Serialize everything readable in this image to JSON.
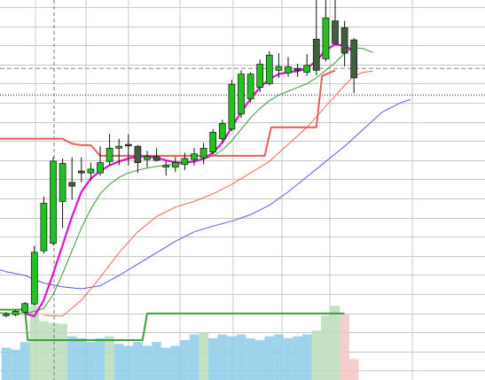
{
  "chart_data": {
    "type": "candlestick",
    "title": "",
    "xlabel": "",
    "ylabel": "",
    "grid": true,
    "legend": "none",
    "ylim": [
      0,
      100
    ],
    "axis_labels_visible": false,
    "colors": {
      "bull": "#22c122",
      "bear": "#3f5f3f",
      "ma_fast": "#e010d0",
      "ma_green": "#3a9a3a",
      "ma_red": "#f06a50",
      "ma_blue": "#5a5ae0",
      "stop_line": "#ee5a5a",
      "volume_step": "#3aa03a",
      "volume_fill": "#8ccbe8",
      "volume_green": "#b9ddb9",
      "volume_red": "#f2c4c4",
      "grid": "#c8c8c8",
      "reference_line": "#000000"
    },
    "candles": [
      {
        "o": 17.0,
        "h": 17.9,
        "l": 16.5,
        "c": 17.3
      },
      {
        "o": 17.2,
        "h": 18.5,
        "l": 16.8,
        "c": 18.1
      },
      {
        "o": 17.8,
        "h": 20.5,
        "l": 17.4,
        "c": 20.1
      },
      {
        "o": 20.0,
        "h": 35.3,
        "l": 19.6,
        "c": 33.6
      },
      {
        "o": 34.0,
        "h": 48.3,
        "l": 33.3,
        "c": 46.5
      },
      {
        "o": 36.0,
        "h": 58.6,
        "l": 35.5,
        "c": 57.6
      },
      {
        "o": 47.0,
        "h": 58.3,
        "l": 40.0,
        "c": 57.0
      },
      {
        "o": 52.0,
        "h": 58.6,
        "l": 47.5,
        "c": 51.0
      },
      {
        "o": 55.0,
        "h": 58.6,
        "l": 52.0,
        "c": 54.5
      },
      {
        "o": 54.5,
        "h": 57.2,
        "l": 52.5,
        "c": 55.5
      },
      {
        "o": 54.5,
        "h": 61.5,
        "l": 53.8,
        "c": 57.2
      },
      {
        "o": 57.5,
        "h": 64.8,
        "l": 56.5,
        "c": 61.0
      },
      {
        "o": 61.0,
        "h": 63.5,
        "l": 56.5,
        "c": 61.5
      },
      {
        "o": 62.0,
        "h": 64.7,
        "l": 56.5,
        "c": 61.6
      },
      {
        "o": 61.5,
        "h": 61.8,
        "l": 54.5,
        "c": 57.2
      },
      {
        "o": 58.0,
        "h": 60.3,
        "l": 56.0,
        "c": 58.8
      },
      {
        "o": 58.8,
        "h": 61.0,
        "l": 57.5,
        "c": 57.8
      },
      {
        "o": 56.0,
        "h": 57.7,
        "l": 53.8,
        "c": 56.5
      },
      {
        "o": 56.0,
        "h": 58.7,
        "l": 54.7,
        "c": 57.2
      },
      {
        "o": 56.7,
        "h": 59.8,
        "l": 55.2,
        "c": 58.3
      },
      {
        "o": 58.0,
        "h": 61.0,
        "l": 56.4,
        "c": 59.5
      },
      {
        "o": 58.5,
        "h": 62.4,
        "l": 56.8,
        "c": 61.0
      },
      {
        "o": 60.0,
        "h": 66.0,
        "l": 59.3,
        "c": 65.2
      },
      {
        "o": 63.5,
        "h": 68.5,
        "l": 62.5,
        "c": 67.5
      },
      {
        "o": 66.0,
        "h": 79.0,
        "l": 65.5,
        "c": 77.8
      },
      {
        "o": 70.0,
        "h": 81.5,
        "l": 69.0,
        "c": 80.5
      },
      {
        "o": 74.0,
        "h": 81.0,
        "l": 73.0,
        "c": 80.5
      },
      {
        "o": 77.0,
        "h": 84.3,
        "l": 75.8,
        "c": 83.1
      },
      {
        "o": 78.0,
        "h": 86.5,
        "l": 77.5,
        "c": 85.5
      },
      {
        "o": 81.5,
        "h": 86.0,
        "l": 79.5,
        "c": 82.5
      },
      {
        "o": 80.8,
        "h": 85.0,
        "l": 79.8,
        "c": 82.4
      },
      {
        "o": 82.0,
        "h": 83.2,
        "l": 79.8,
        "c": 81.5
      },
      {
        "o": 81.0,
        "h": 85.7,
        "l": 80.0,
        "c": 82.8
      },
      {
        "o": 89.7,
        "h": 100.0,
        "l": 80.2,
        "c": 81.5
      },
      {
        "o": 84.5,
        "h": 101.0,
        "l": 83.8,
        "c": 95.3
      },
      {
        "o": 94.5,
        "h": 100.0,
        "l": 88.5,
        "c": 88.5
      },
      {
        "o": 92.7,
        "h": 94.5,
        "l": 82.5,
        "c": 86.0
      },
      {
        "o": 89.5,
        "h": 90.0,
        "l": 75.5,
        "c": 79.5
      }
    ],
    "ma_fast": [
      {
        "i": 2,
        "v": 17.5
      },
      {
        "i": 3,
        "v": 16.8
      },
      {
        "i": 4,
        "v": 21.0
      },
      {
        "i": 5,
        "v": 28.0
      },
      {
        "i": 6,
        "v": 35.5
      },
      {
        "i": 7,
        "v": 43.0
      },
      {
        "i": 8,
        "v": 49.5
      },
      {
        "i": 9,
        "v": 53.0
      },
      {
        "i": 10,
        "v": 55.0
      },
      {
        "i": 11,
        "v": 56.5
      },
      {
        "i": 12,
        "v": 57.5
      },
      {
        "i": 13,
        "v": 58.3
      },
      {
        "i": 14,
        "v": 58.8
      },
      {
        "i": 15,
        "v": 58.8
      },
      {
        "i": 16,
        "v": 58.5
      },
      {
        "i": 17,
        "v": 57.8
      },
      {
        "i": 18,
        "v": 57.3
      },
      {
        "i": 19,
        "v": 57.2
      },
      {
        "i": 20,
        "v": 57.5
      },
      {
        "i": 21,
        "v": 58.2
      },
      {
        "i": 22,
        "v": 59.8
      },
      {
        "i": 23,
        "v": 62.5
      },
      {
        "i": 24,
        "v": 66.5
      },
      {
        "i": 25,
        "v": 70.5
      },
      {
        "i": 26,
        "v": 74.0
      },
      {
        "i": 27,
        "v": 77.0
      },
      {
        "i": 28,
        "v": 79.2
      },
      {
        "i": 29,
        "v": 80.5
      },
      {
        "i": 30,
        "v": 81.0
      },
      {
        "i": 31,
        "v": 81.3
      },
      {
        "i": 32,
        "v": 82.0
      },
      {
        "i": 33,
        "v": 84.0
      },
      {
        "i": 34,
        "v": 86.8
      },
      {
        "i": 35,
        "v": 88.3
      },
      {
        "i": 36,
        "v": 88.0
      },
      {
        "i": 37,
        "v": 86.5
      }
    ],
    "ma_green": [
      {
        "i": -2,
        "v": 18.0
      },
      {
        "i": 0,
        "v": 17.6
      },
      {
        "i": 2,
        "v": 17.4
      },
      {
        "i": 4,
        "v": 18.8
      },
      {
        "i": 5,
        "v": 22.5
      },
      {
        "i": 6,
        "v": 28.0
      },
      {
        "i": 7,
        "v": 34.0
      },
      {
        "i": 8,
        "v": 40.0
      },
      {
        "i": 9,
        "v": 45.0
      },
      {
        "i": 10,
        "v": 49.0
      },
      {
        "i": 11,
        "v": 51.5
      },
      {
        "i": 12,
        "v": 53.3
      },
      {
        "i": 13,
        "v": 54.5
      },
      {
        "i": 14,
        "v": 55.2
      },
      {
        "i": 15,
        "v": 55.8
      },
      {
        "i": 16,
        "v": 56.2
      },
      {
        "i": 17,
        "v": 56.5
      },
      {
        "i": 18,
        "v": 56.8
      },
      {
        "i": 19,
        "v": 57.1
      },
      {
        "i": 20,
        "v": 57.5
      },
      {
        "i": 21,
        "v": 58.1
      },
      {
        "i": 22,
        "v": 59.0
      },
      {
        "i": 23,
        "v": 60.5
      },
      {
        "i": 24,
        "v": 63.0
      },
      {
        "i": 25,
        "v": 66.0
      },
      {
        "i": 26,
        "v": 69.0
      },
      {
        "i": 27,
        "v": 71.5
      },
      {
        "i": 28,
        "v": 73.5
      },
      {
        "i": 29,
        "v": 75.0
      },
      {
        "i": 30,
        "v": 76.0
      },
      {
        "i": 31,
        "v": 77.0
      },
      {
        "i": 32,
        "v": 78.0
      },
      {
        "i": 33,
        "v": 79.5
      },
      {
        "i": 34,
        "v": 81.5
      },
      {
        "i": 35,
        "v": 83.5
      },
      {
        "i": 36,
        "v": 86.0
      },
      {
        "i": 37,
        "v": 87.5
      },
      {
        "i": 38,
        "v": 87.2
      },
      {
        "i": 39,
        "v": 86.2
      }
    ],
    "ma_red": [
      {
        "i": 4,
        "v": 17.0
      },
      {
        "i": 6,
        "v": 16.8
      },
      {
        "i": 8,
        "v": 21.0
      },
      {
        "i": 10,
        "v": 27.0
      },
      {
        "i": 12,
        "v": 33.5
      },
      {
        "i": 14,
        "v": 39.0
      },
      {
        "i": 16,
        "v": 43.0
      },
      {
        "i": 18,
        "v": 45.5
      },
      {
        "i": 20,
        "v": 47.0
      },
      {
        "i": 22,
        "v": 49.0
      },
      {
        "i": 24,
        "v": 51.5
      },
      {
        "i": 26,
        "v": 54.5
      },
      {
        "i": 28,
        "v": 57.5
      },
      {
        "i": 30,
        "v": 62.0
      },
      {
        "i": 32,
        "v": 66.5
      },
      {
        "i": 34,
        "v": 72.0
      },
      {
        "i": 36,
        "v": 77.5
      },
      {
        "i": 37,
        "v": 80.0
      },
      {
        "i": 38,
        "v": 81.0
      },
      {
        "i": 39,
        "v": 81.3
      }
    ],
    "ma_blue": [
      {
        "i": -2,
        "v": 30.0
      },
      {
        "i": 0,
        "v": 28.5
      },
      {
        "i": 2,
        "v": 27.5
      },
      {
        "i": 4,
        "v": 25.5
      },
      {
        "i": 6,
        "v": 24.5
      },
      {
        "i": 8,
        "v": 24.0
      },
      {
        "i": 10,
        "v": 24.8
      },
      {
        "i": 12,
        "v": 27.5
      },
      {
        "i": 14,
        "v": 30.5
      },
      {
        "i": 16,
        "v": 33.5
      },
      {
        "i": 18,
        "v": 36.5
      },
      {
        "i": 20,
        "v": 39.0
      },
      {
        "i": 22,
        "v": 40.5
      },
      {
        "i": 24,
        "v": 41.8
      },
      {
        "i": 26,
        "v": 43.5
      },
      {
        "i": 28,
        "v": 46.0
      },
      {
        "i": 30,
        "v": 49.5
      },
      {
        "i": 32,
        "v": 53.5
      },
      {
        "i": 34,
        "v": 57.5
      },
      {
        "i": 36,
        "v": 61.5
      },
      {
        "i": 38,
        "v": 66.0
      },
      {
        "i": 40,
        "v": 70.5
      },
      {
        "i": 42,
        "v": 73.0
      },
      {
        "i": 43,
        "v": 73.8
      }
    ],
    "stop_line": [
      {
        "i": -2,
        "v": 63.5
      },
      {
        "i": 6,
        "v": 63.5
      },
      {
        "i": 7,
        "v": 62.2
      },
      {
        "i": 8,
        "v": 61.8
      },
      {
        "i": 9,
        "v": 61.8
      },
      {
        "i": 10,
        "v": 59.0
      },
      {
        "i": 27.5,
        "v": 59.0
      },
      {
        "i": 28.2,
        "v": 66.5
      },
      {
        "i": 33,
        "v": 66.5
      },
      {
        "i": 33.6,
        "v": 80.0
      },
      {
        "i": 35,
        "v": 81.5
      }
    ],
    "volume_step": [
      {
        "i": -2,
        "v": 18.5
      },
      {
        "i": 2,
        "v": 18.5
      },
      {
        "i": 2.3,
        "v": 10.5
      },
      {
        "i": 14.5,
        "v": 10.5
      },
      {
        "i": 15,
        "v": 17.5
      },
      {
        "i": 36,
        "v": 17.5
      }
    ],
    "volume_bars": [
      {
        "v": 8.5,
        "c": "blue"
      },
      {
        "v": 8.0,
        "c": "blue"
      },
      {
        "v": 10.0,
        "c": "blue"
      },
      {
        "v": 19.5,
        "c": "green"
      },
      {
        "v": 15.5,
        "c": "green"
      },
      {
        "v": 15.0,
        "c": "green"
      },
      {
        "v": 14.8,
        "c": "green"
      },
      {
        "v": 11.5,
        "c": "blue"
      },
      {
        "v": 11.0,
        "c": "blue"
      },
      {
        "v": 10.0,
        "c": "blue"
      },
      {
        "v": 11.0,
        "c": "blue"
      },
      {
        "v": 11.5,
        "c": "green"
      },
      {
        "v": 9.5,
        "c": "blue"
      },
      {
        "v": 9.0,
        "c": "blue"
      },
      {
        "v": 10.0,
        "c": "blue"
      },
      {
        "v": 9.0,
        "c": "blue"
      },
      {
        "v": 10.0,
        "c": "blue"
      },
      {
        "v": 8.5,
        "c": "blue"
      },
      {
        "v": 9.0,
        "c": "blue"
      },
      {
        "v": 10.5,
        "c": "blue"
      },
      {
        "v": 12.0,
        "c": "blue"
      },
      {
        "v": 12.5,
        "c": "green"
      },
      {
        "v": 11.0,
        "c": "blue"
      },
      {
        "v": 12.0,
        "c": "blue"
      },
      {
        "v": 11.5,
        "c": "blue"
      },
      {
        "v": 12.0,
        "c": "blue"
      },
      {
        "v": 11.0,
        "c": "blue"
      },
      {
        "v": 10.5,
        "c": "blue"
      },
      {
        "v": 11.5,
        "c": "blue"
      },
      {
        "v": 12.0,
        "c": "blue"
      },
      {
        "v": 11.0,
        "c": "blue"
      },
      {
        "v": 11.5,
        "c": "blue"
      },
      {
        "v": 12.0,
        "c": "blue"
      },
      {
        "v": 13.0,
        "c": "green"
      },
      {
        "v": 17.0,
        "c": "green"
      },
      {
        "v": 19.5,
        "c": "green"
      },
      {
        "v": 17.5,
        "c": "red"
      },
      {
        "v": 5.5,
        "c": "red"
      }
    ],
    "reference_lines": [
      {
        "v": 82.0,
        "style": "dashed"
      },
      {
        "v": 75.0,
        "style": "dotted"
      }
    ],
    "vertical_marker": {
      "i": 5,
      "style": "dashed"
    }
  }
}
